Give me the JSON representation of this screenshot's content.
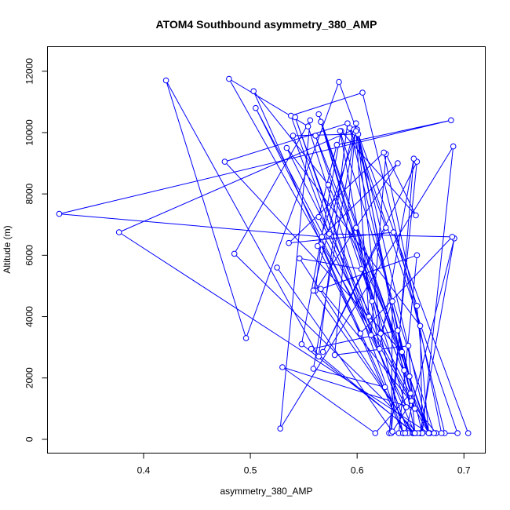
{
  "chart_data": {
    "type": "line",
    "title": "ATOM4 Southbound asymmetry_380_AMP",
    "xlabel": "asymmetry_380_AMP",
    "ylabel": "Altitude (m)",
    "xlim": [
      0.31,
      0.72
    ],
    "ylim": [
      -450,
      12800
    ],
    "x_ticks": [
      0.4,
      0.5,
      0.6,
      0.7
    ],
    "x_tick_labels": [
      "0.4",
      "0.5",
      "0.6",
      "0.7"
    ],
    "y_ticks": [
      0,
      2000,
      4000,
      6000,
      8000,
      10000,
      12000
    ],
    "y_tick_labels": [
      "0",
      "2000",
      "4000",
      "6000",
      "8000",
      "10000",
      "12000"
    ],
    "grid": false,
    "legend": "none",
    "series_color": "#0000ff",
    "series": [
      {
        "x": [
          0.704,
          0.583,
          0.496,
          0.421,
          0.564,
          0.591,
          0.476,
          0.642,
          0.573,
          0.503,
          0.626,
          0.559,
          0.598,
          0.694,
          0.682,
          0.605,
          0.538,
          0.643,
          0.566,
          0.561,
          0.638,
          0.567,
          0.321,
          0.688,
          0.581,
          0.564,
          0.573,
          0.654,
          0.548,
          0.585,
          0.655,
          0.627,
          0.613,
          0.542,
          0.648,
          0.679,
          0.625,
          0.536,
          0.634,
          0.656,
          0.667,
          0.604,
          0.546,
          0.652,
          0.639,
          0.656,
          0.566,
          0.674,
          0.661,
          0.659,
          0.534,
          0.668,
          0.599,
          0.643,
          0.659,
          0.691,
          0.645,
          0.63,
          0.656,
          0.568,
          0.627,
          0.593,
          0.649,
          0.561,
          0.614,
          0.564,
          0.667,
          0.377,
          0.597,
          0.559,
          0.653,
          0.557,
          0.638,
          0.661,
          0.69,
          0.528,
          0.556,
          0.485,
          0.657,
          0.654,
          0.672,
          0.584,
          0.621,
          0.653,
          0.632,
          0.633,
          0.622,
          0.599,
          0.579,
          0.648,
          0.654,
          0.6,
          0.563,
          0.603,
          0.689,
          0.574,
          0.54,
          0.601,
          0.667,
          0.48,
          0.554,
          0.611,
          0.599,
          0.65,
          0.617,
          0.53,
          0.654,
          0.644,
          0.566,
          0.646,
          0.505,
          0.651,
          0.633,
          0.525
        ],
        "y": [
          200,
          11650,
          3300,
          11700,
          2700,
          10300,
          9050,
          2850,
          8300,
          11350,
          1700,
          2300,
          10000,
          200,
          200,
          11300,
          10550,
          200,
          6350,
          4850,
          9000,
          6600,
          7350,
          10400,
          9600,
          7250,
          6650,
          200,
          3100,
          10050,
          7300,
          9300,
          3400,
          10500,
          200,
          200,
          9350,
          6400,
          6750,
          4350,
          200,
          5550,
          5900,
          200,
          200,
          6000,
          4900,
          200,
          200,
          3700,
          9500,
          200,
          6900,
          200,
          200,
          6550,
          200,
          200,
          9050,
          2850,
          6900,
          10150,
          2050,
          9900,
          4500,
          10600,
          200,
          6750,
          10100,
          4850,
          200,
          2950,
          3550,
          200,
          9550,
          350,
          10400,
          6050,
          200,
          200,
          200,
          10050,
          2950,
          9150,
          200,
          4500,
          3450,
          10300,
          2750,
          3050,
          200,
          10100,
          6300,
          3450,
          6600,
          6700,
          9900,
          9950,
          200,
          11750,
          10200,
          4000,
          10050,
          1500,
          200,
          2350,
          1000,
          2250,
          10350,
          1050,
          10800,
          1250,
          250,
          5600
        ]
      }
    ]
  }
}
